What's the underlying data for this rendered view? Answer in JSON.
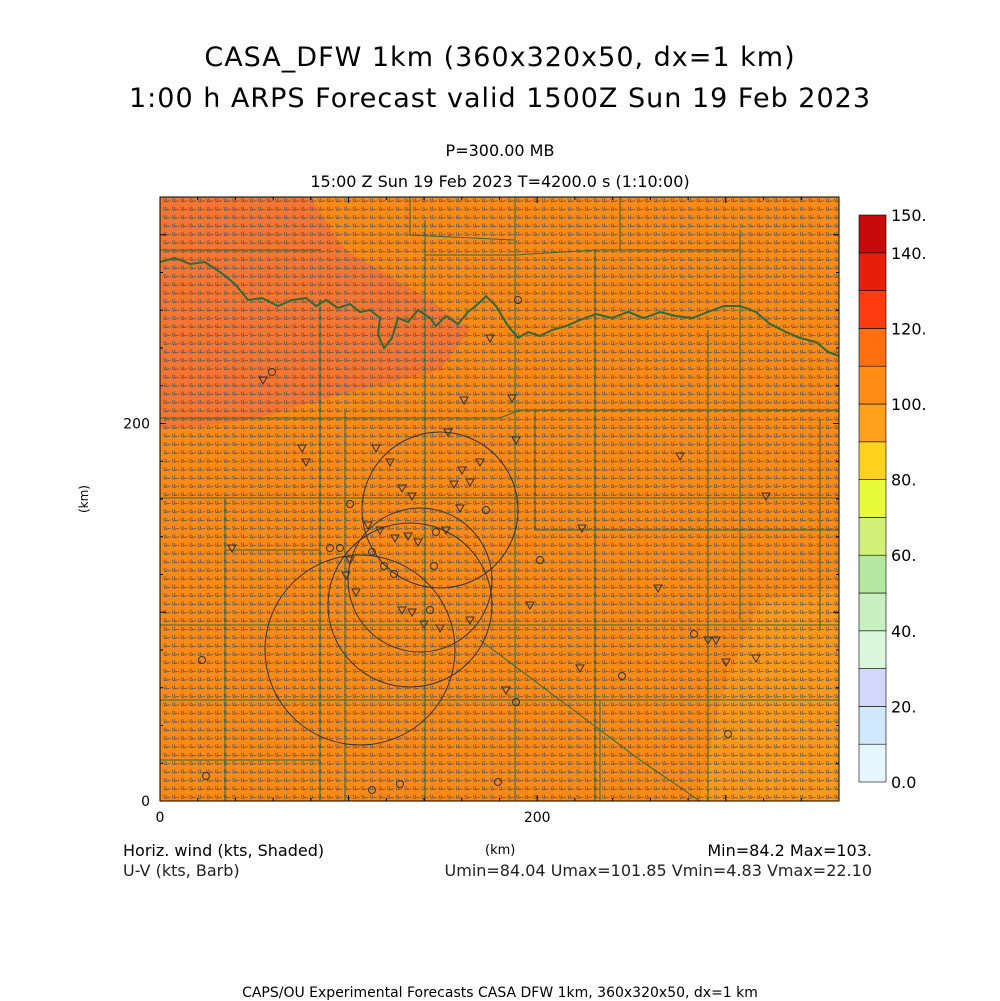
{
  "title": {
    "line1": "CASA_DFW 1km (360x320x50, dx=1 km)",
    "line2": "1:00 h ARPS Forecast valid 1500Z Sun 19 Feb 2023"
  },
  "level": "P=300.00 MB",
  "valid_time": "15:00 Z Sun 19 Feb 2023   T=4200.0 s (1:10:00)",
  "axes": {
    "xlabel": "(km)",
    "ylabel": "(km)",
    "x_ticks": [
      {
        "value": 0,
        "label": "0"
      },
      {
        "value": 200,
        "label": "200"
      }
    ],
    "y_ticks": [
      {
        "value": 0,
        "label": "0"
      },
      {
        "value": 200,
        "label": "200"
      }
    ],
    "x_range_km": [
      0,
      360
    ],
    "y_range_km": [
      0,
      320
    ]
  },
  "colorbar": {
    "tick_labels": [
      "0.0",
      "20.",
      "40.",
      "60.",
      "80.",
      "100.",
      "120.",
      "140.",
      "150."
    ],
    "levels": [
      0,
      10,
      20,
      30,
      40,
      50,
      60,
      70,
      80,
      90,
      100,
      110,
      120,
      130,
      140,
      150
    ],
    "colors": [
      "#e6f6ff",
      "#d2e8ff",
      "#d2d8ff",
      "#dcf8dc",
      "#c8f0c0",
      "#b4e8a0",
      "#d2f078",
      "#e8fa3c",
      "#ffd21e",
      "#ffa01a",
      "#ff8c14",
      "#ff6e10",
      "#ff3c10",
      "#e61e0c",
      "#c80a0a"
    ]
  },
  "field_colors": {
    "base": "#fc8a16",
    "high": "#f47632",
    "low": "#fc981c",
    "barb": "#555555",
    "county": "#2f6a3a",
    "range_ring": "#333333"
  },
  "footer": {
    "field_label": "Horiz. wind (kts, Shaded)",
    "barb_label": "U-V (kts, Barb)",
    "xlabel": "(km)",
    "minmax": "Min=84.2 Max=103.",
    "uv_stats": "Umin=84.04 Umax=101.85 Vmin=4.83 Vmax=22.10"
  },
  "credit": "CAPS/OU Experimental Forecasts  CASA DFW 1km, 360x320x50, dx=1 km"
}
